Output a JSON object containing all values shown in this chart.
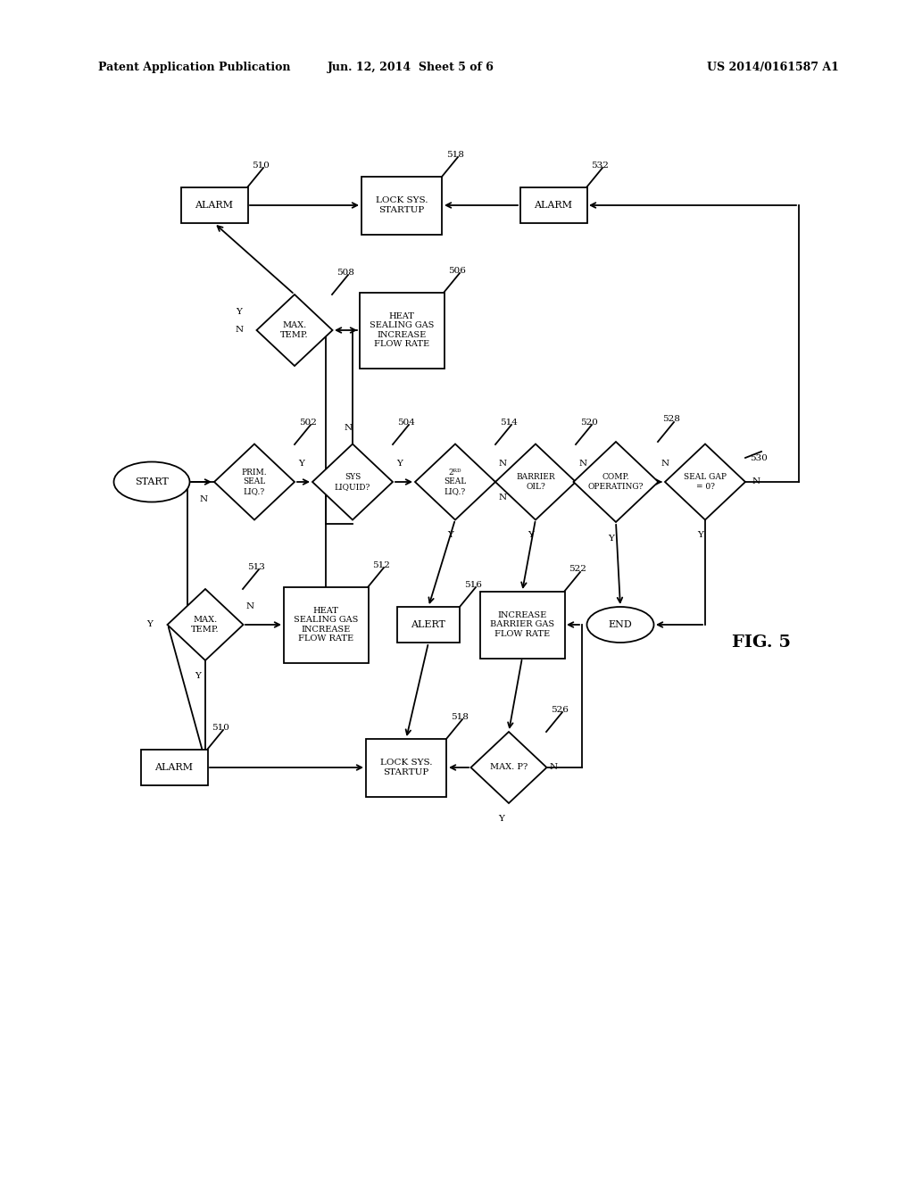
{
  "title_left": "Patent Application Publication",
  "title_center": "Jun. 12, 2014  Sheet 5 of 6",
  "title_right": "US 2014/0161587 A1",
  "fig_label": "FIG. 5",
  "background": "#ffffff"
}
